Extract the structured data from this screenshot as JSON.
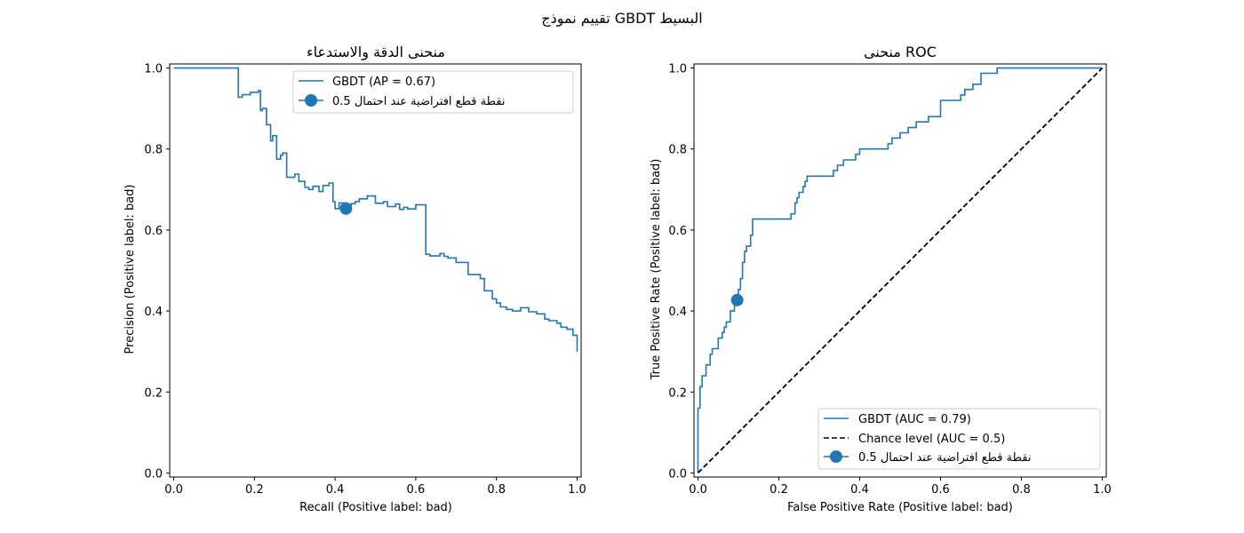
{
  "figure": {
    "suptitle": "تقييم نموذج GBDT البسيط",
    "colors": {
      "series": "#1f77b4",
      "chance": "#000000",
      "frame": "#000000",
      "legend_border": "#cccccc"
    }
  },
  "chart_data": [
    {
      "type": "line",
      "step": true,
      "title": "منحنى الدقة والاستدعاء",
      "xlabel": "Recall (Positive label: bad)",
      "ylabel": "Precision (Positive label: bad)",
      "xlim": [
        -0.01,
        1.01
      ],
      "ylim": [
        -0.01,
        1.01
      ],
      "xticks": [
        0.0,
        0.2,
        0.4,
        0.6,
        0.8,
        1.0
      ],
      "yticks": [
        0.0,
        0.2,
        0.4,
        0.6,
        0.8,
        1.0
      ],
      "xtick_labels": [
        "0.0",
        "0.2",
        "0.4",
        "0.6",
        "0.8",
        "1.0"
      ],
      "ytick_labels": [
        "0.0",
        "0.2",
        "0.4",
        "0.6",
        "0.8",
        "1.0"
      ],
      "legend_position": "top-right",
      "series": [
        {
          "name": "GBDT (AP = 0.67)",
          "style": "solid",
          "x": [
            0.0,
            0.16,
            0.16,
            0.17,
            0.17,
            0.19,
            0.19,
            0.21,
            0.21,
            0.215,
            0.215,
            0.22,
            0.22,
            0.23,
            0.23,
            0.24,
            0.24,
            0.245,
            0.245,
            0.255,
            0.255,
            0.265,
            0.265,
            0.27,
            0.27,
            0.28,
            0.28,
            0.3,
            0.3,
            0.31,
            0.31,
            0.325,
            0.325,
            0.335,
            0.335,
            0.345,
            0.345,
            0.36,
            0.36,
            0.37,
            0.37,
            0.385,
            0.385,
            0.395,
            0.395,
            0.4,
            0.4,
            0.41,
            0.41,
            0.425,
            0.425,
            0.44,
            0.44,
            0.45,
            0.45,
            0.46,
            0.46,
            0.48,
            0.48,
            0.5,
            0.5,
            0.52,
            0.52,
            0.53,
            0.53,
            0.55,
            0.55,
            0.56,
            0.56,
            0.57,
            0.57,
            0.58,
            0.58,
            0.6,
            0.6,
            0.625,
            0.625,
            0.635,
            0.635,
            0.66,
            0.66,
            0.67,
            0.67,
            0.68,
            0.68,
            0.7,
            0.7,
            0.73,
            0.73,
            0.76,
            0.76,
            0.77,
            0.77,
            0.79,
            0.79,
            0.8,
            0.8,
            0.81,
            0.81,
            0.825,
            0.825,
            0.84,
            0.84,
            0.86,
            0.86,
            0.88,
            0.88,
            0.9,
            0.9,
            0.92,
            0.92,
            0.93,
            0.93,
            0.95,
            0.95,
            0.96,
            0.96,
            0.975,
            0.975,
            0.99,
            0.99,
            1.0,
            1.0
          ],
          "y": [
            1.0,
            1.0,
            0.928,
            0.928,
            0.934,
            0.934,
            0.94,
            0.94,
            0.944,
            0.944,
            0.895,
            0.895,
            0.9,
            0.9,
            0.86,
            0.86,
            0.82,
            0.82,
            0.833,
            0.833,
            0.775,
            0.775,
            0.785,
            0.785,
            0.79,
            0.79,
            0.73,
            0.73,
            0.738,
            0.738,
            0.72,
            0.72,
            0.705,
            0.705,
            0.7,
            0.7,
            0.708,
            0.708,
            0.695,
            0.695,
            0.71,
            0.71,
            0.716,
            0.716,
            0.67,
            0.67,
            0.653,
            0.653,
            0.667,
            0.667,
            0.66,
            0.66,
            0.665,
            0.665,
            0.67,
            0.67,
            0.677,
            0.677,
            0.684,
            0.684,
            0.666,
            0.666,
            0.67,
            0.67,
            0.658,
            0.658,
            0.664,
            0.664,
            0.651,
            0.651,
            0.656,
            0.656,
            0.652,
            0.652,
            0.662,
            0.662,
            0.54,
            0.54,
            0.536,
            0.536,
            0.542,
            0.542,
            0.535,
            0.535,
            0.531,
            0.531,
            0.52,
            0.52,
            0.49,
            0.49,
            0.48,
            0.48,
            0.45,
            0.45,
            0.43,
            0.43,
            0.42,
            0.42,
            0.41,
            0.41,
            0.404,
            0.404,
            0.4,
            0.4,
            0.408,
            0.408,
            0.398,
            0.398,
            0.393,
            0.393,
            0.38,
            0.38,
            0.376,
            0.376,
            0.37,
            0.37,
            0.36,
            0.36,
            0.355,
            0.355,
            0.34,
            0.34,
            0.3
          ]
        }
      ],
      "markers": [
        {
          "name": "نقطة قطع افتراضية عند احتمال 0.5",
          "x": 0.427,
          "y": 0.653
        }
      ]
    },
    {
      "type": "line",
      "step": true,
      "title": "منحنى ROC",
      "xlabel": "False Positive Rate (Positive label: bad)",
      "ylabel": "True Positive Rate (Positive label: bad)",
      "xlim": [
        -0.01,
        1.01
      ],
      "ylim": [
        -0.01,
        1.01
      ],
      "xticks": [
        0.0,
        0.2,
        0.4,
        0.6,
        0.8,
        1.0
      ],
      "yticks": [
        0.0,
        0.2,
        0.4,
        0.6,
        0.8,
        1.0
      ],
      "xtick_labels": [
        "0.0",
        "0.2",
        "0.4",
        "0.6",
        "0.8",
        "1.0"
      ],
      "ytick_labels": [
        "0.0",
        "0.2",
        "0.4",
        "0.6",
        "0.8",
        "1.0"
      ],
      "legend_position": "bottom-right",
      "series": [
        {
          "name": "GBDT (AUC = 0.79)",
          "style": "solid",
          "x": [
            0.0,
            0.0,
            0.005,
            0.005,
            0.01,
            0.01,
            0.02,
            0.02,
            0.03,
            0.03,
            0.035,
            0.035,
            0.05,
            0.05,
            0.06,
            0.06,
            0.065,
            0.065,
            0.07,
            0.07,
            0.08,
            0.08,
            0.09,
            0.09,
            0.1,
            0.1,
            0.105,
            0.105,
            0.11,
            0.11,
            0.115,
            0.115,
            0.12,
            0.12,
            0.13,
            0.13,
            0.135,
            0.135,
            0.23,
            0.23,
            0.24,
            0.24,
            0.245,
            0.245,
            0.25,
            0.25,
            0.26,
            0.26,
            0.265,
            0.265,
            0.27,
            0.27,
            0.335,
            0.335,
            0.345,
            0.345,
            0.36,
            0.36,
            0.39,
            0.39,
            0.4,
            0.4,
            0.47,
            0.47,
            0.48,
            0.48,
            0.5,
            0.5,
            0.52,
            0.52,
            0.54,
            0.54,
            0.57,
            0.57,
            0.6,
            0.6,
            0.65,
            0.65,
            0.66,
            0.66,
            0.68,
            0.68,
            0.7,
            0.7,
            0.74,
            0.74,
            0.76,
            0.76,
            0.84,
            0.84,
            1.0,
            1.0
          ],
          "y": [
            0.0,
            0.16,
            0.16,
            0.213,
            0.213,
            0.24,
            0.24,
            0.267,
            0.267,
            0.293,
            0.293,
            0.307,
            0.307,
            0.333,
            0.333,
            0.347,
            0.347,
            0.36,
            0.36,
            0.373,
            0.373,
            0.4,
            0.4,
            0.427,
            0.427,
            0.453,
            0.453,
            0.48,
            0.48,
            0.52,
            0.52,
            0.547,
            0.547,
            0.56,
            0.56,
            0.587,
            0.587,
            0.627,
            0.627,
            0.64,
            0.64,
            0.667,
            0.667,
            0.68,
            0.68,
            0.693,
            0.693,
            0.707,
            0.707,
            0.72,
            0.72,
            0.733,
            0.733,
            0.747,
            0.747,
            0.76,
            0.76,
            0.773,
            0.773,
            0.787,
            0.787,
            0.8,
            0.8,
            0.813,
            0.813,
            0.827,
            0.827,
            0.84,
            0.84,
            0.853,
            0.853,
            0.867,
            0.867,
            0.88,
            0.88,
            0.92,
            0.92,
            0.933,
            0.933,
            0.947,
            0.947,
            0.96,
            0.96,
            0.987,
            0.987,
            1.0,
            1.0,
            1.0,
            1.0,
            1.0,
            1.0,
            1.0
          ]
        },
        {
          "name": "Chance level (AUC = 0.5)",
          "style": "dashed",
          "x": [
            0.0,
            1.0
          ],
          "y": [
            0.0,
            1.0
          ]
        }
      ],
      "markers": [
        {
          "name": "نقطة قطع افتراضية عند احتمال 0.5",
          "x": 0.097,
          "y": 0.427
        }
      ]
    }
  ]
}
